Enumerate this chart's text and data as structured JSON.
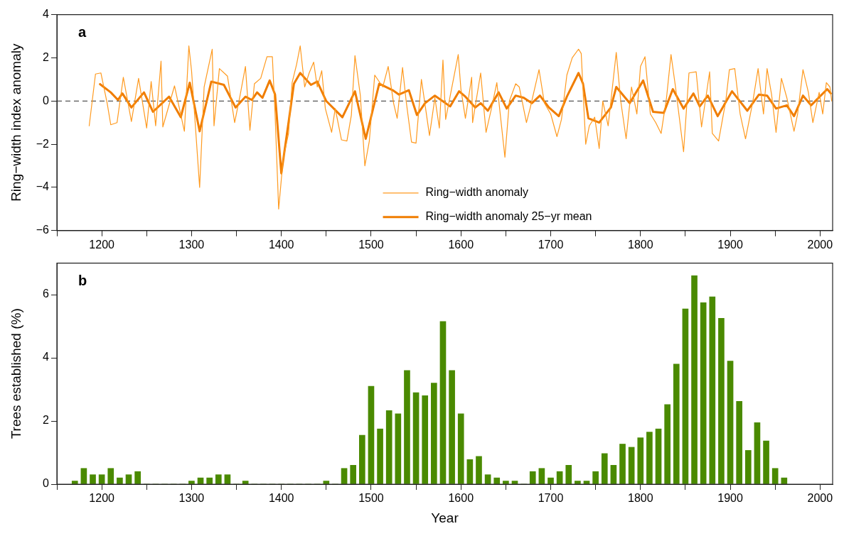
{
  "chart_data": [
    {
      "type": "line",
      "ylabel": "Ring−width index anomaly",
      "annotations": [
        "a"
      ],
      "legend": "bottom",
      "marker": "none",
      "grid": false,
      "xlim": [
        1150,
        2014
      ],
      "xticks": [
        {
          "value": 1150,
          "label": null
        },
        1200,
        {
          "value": 1250,
          "label": null
        },
        1300,
        {
          "value": 1350,
          "label": null
        },
        1400,
        {
          "value": 1450,
          "label": null
        },
        1500,
        {
          "value": 1550,
          "label": null
        },
        1600,
        {
          "value": 1650,
          "label": null
        },
        1700,
        {
          "value": 1750,
          "label": null
        },
        1800,
        {
          "value": 1850,
          "label": null
        },
        1900,
        {
          "value": 1950,
          "label": null
        },
        2000
      ],
      "ylim": [
        -6,
        4
      ],
      "yticks": [
        {
          "value": -6,
          "label": "−6"
        },
        {
          "value": -4,
          "label": "−4"
        },
        {
          "value": -2,
          "label": "−2"
        },
        0,
        2,
        4
      ],
      "ref_lines": [
        {
          "axis": "y",
          "value": 0,
          "color": "#555555",
          "line_style": "dashed"
        }
      ],
      "series": [
        {
          "name": "Ring−width anomaly",
          "color": "#ff9a1f",
          "x": [
            1186,
            1193,
            1199,
            1206,
            1210,
            1217,
            1224,
            1233,
            1241,
            1250,
            1255,
            1260,
            1266,
            1268,
            1281,
            1292,
            1297,
            1300,
            1309,
            1314,
            1323,
            1325,
            1331,
            1340,
            1348,
            1354,
            1360,
            1365,
            1370,
            1377,
            1384,
            1390,
            1393,
            1397,
            1402,
            1408,
            1412,
            1417,
            1421,
            1426,
            1431,
            1436,
            1440,
            1445,
            1449,
            1456,
            1460,
            1467,
            1473,
            1478,
            1482,
            1488,
            1493,
            1498,
            1504,
            1513,
            1519,
            1525,
            1529,
            1535,
            1539,
            1545,
            1550,
            1556,
            1565,
            1571,
            1576,
            1580,
            1583,
            1597,
            1600,
            1605,
            1612,
            1613,
            1622,
            1628,
            1634,
            1640,
            1649,
            1654,
            1661,
            1665,
            1673,
            1677,
            1687,
            1693,
            1700,
            1707,
            1712,
            1718,
            1724,
            1731,
            1734,
            1739,
            1743,
            1749,
            1754,
            1758,
            1764,
            1773,
            1778,
            1784,
            1790,
            1796,
            1800,
            1805,
            1811,
            1817,
            1823,
            1829,
            1834,
            1839,
            1848,
            1854,
            1862,
            1868,
            1877,
            1880,
            1887,
            1895,
            1899,
            1905,
            1911,
            1917,
            1925,
            1931,
            1937,
            1941,
            1946,
            1951,
            1957,
            1963,
            1971,
            1975,
            1981,
            1987,
            1992,
            1999,
            2003,
            2007,
            2011,
            2013
          ],
          "values": [
            -1.15,
            1.25,
            1.3,
            -0.1,
            -1.1,
            -1.0,
            1.1,
            -0.95,
            1.05,
            -1.25,
            0.9,
            -1.15,
            1.85,
            -1.2,
            0.7,
            -1.4,
            2.55,
            1.4,
            -4.0,
            0.65,
            2.4,
            -1.15,
            1.5,
            1.15,
            -1.0,
            0.25,
            1.6,
            -1.35,
            0.8,
            1.05,
            2.05,
            2.05,
            -0.6,
            -5.0,
            -2.7,
            -1.5,
            0.85,
            1.7,
            2.55,
            0.65,
            1.3,
            1.8,
            0.65,
            1.4,
            -0.35,
            -1.45,
            -0.35,
            -1.8,
            -1.85,
            -0.65,
            2.1,
            0.25,
            -3.0,
            -1.85,
            1.2,
            0.65,
            1.6,
            -0.1,
            -0.8,
            1.55,
            0,
            -1.9,
            -1.95,
            1.0,
            -1.6,
            0.15,
            -1.25,
            1.9,
            -0.85,
            2.15,
            0.55,
            -0.8,
            1.1,
            -1.0,
            1.3,
            -1.45,
            -0.35,
            0.85,
            -2.6,
            0,
            0.8,
            0.65,
            -1.0,
            -0.35,
            1.45,
            -0.1,
            -0.6,
            -1.65,
            -0.85,
            1.2,
            2.0,
            2.4,
            2.2,
            -2.0,
            -1.15,
            -0.75,
            -2.2,
            0,
            -1.15,
            2.25,
            0,
            -1.75,
            0.65,
            -0.6,
            1.6,
            2.05,
            -0.6,
            -1.0,
            -1.5,
            0.15,
            2.15,
            0.65,
            -2.35,
            1.3,
            1.35,
            -1.2,
            1.35,
            -1.5,
            -1.85,
            0,
            1.45,
            1.5,
            -0.6,
            -1.75,
            -0.05,
            1.5,
            -0.6,
            1.5,
            0.3,
            -1.45,
            1.05,
            0.15,
            -1.4,
            -0.6,
            1.45,
            0.4,
            -1.0,
            0.4,
            -0.6,
            0.85,
            0.65,
            0
          ]
        },
        {
          "name": "Ring−width anomaly 25−yr mean",
          "color": "#f07d00",
          "x": [
            1198,
            1210,
            1218,
            1223,
            1233,
            1247,
            1257,
            1275,
            1288,
            1298,
            1309,
            1322,
            1336,
            1349,
            1360,
            1367,
            1373,
            1379,
            1387,
            1393,
            1400,
            1408,
            1414,
            1421,
            1433,
            1440,
            1450,
            1468,
            1482,
            1494,
            1509,
            1524,
            1531,
            1542,
            1551,
            1560,
            1571,
            1588,
            1598,
            1605,
            1616,
            1622,
            1630,
            1642,
            1651,
            1661,
            1670,
            1679,
            1688,
            1698,
            1709,
            1718,
            1731,
            1736,
            1742,
            1754,
            1767,
            1773,
            1788,
            1803,
            1814,
            1826,
            1836,
            1848,
            1859,
            1866,
            1875,
            1886,
            1902,
            1919,
            1932,
            1941,
            1951,
            1963,
            1971,
            1981,
            1990,
            2008,
            2012
          ],
          "values": [
            0.78,
            0.4,
            0.05,
            0.35,
            -0.3,
            0.4,
            -0.5,
            0.2,
            -0.75,
            0.85,
            -1.4,
            0.9,
            0.75,
            -0.3,
            0.2,
            0.05,
            0.4,
            0.15,
            0.95,
            0.3,
            -3.35,
            -1.0,
            0.8,
            1.3,
            0.75,
            0.9,
            0,
            -0.75,
            0.45,
            -1.75,
            0.8,
            0.5,
            0.3,
            0.5,
            -0.65,
            -0.1,
            0.25,
            -0.25,
            0.45,
            0.2,
            -0.3,
            -0.1,
            -0.45,
            0.4,
            -0.35,
            0.25,
            0.15,
            -0.1,
            0.25,
            -0.3,
            -0.7,
            0.2,
            1.3,
            0.8,
            -0.8,
            -1.0,
            -0.3,
            0.65,
            -0.1,
            0.95,
            -0.5,
            -0.55,
            0.55,
            -0.35,
            0.35,
            -0.25,
            0.25,
            -0.7,
            0.45,
            -0.45,
            0.3,
            0.25,
            -0.35,
            -0.2,
            -0.7,
            0.25,
            -0.2,
            0.55,
            0.35
          ]
        }
      ]
    },
    {
      "type": "bar",
      "xlabel": "Year",
      "ylabel": "Trees established (%)",
      "annotations": [
        "b"
      ],
      "color": "#4a8a00",
      "grid": false,
      "xlim": [
        1150,
        2014
      ],
      "xticks": [
        {
          "value": 1150,
          "label": null
        },
        1200,
        {
          "value": 1250,
          "label": null
        },
        1300,
        {
          "value": 1350,
          "label": null
        },
        1400,
        {
          "value": 1450,
          "label": null
        },
        1500,
        {
          "value": 1550,
          "label": null
        },
        1600,
        {
          "value": 1650,
          "label": null
        },
        1700,
        {
          "value": 1750,
          "label": null
        },
        1800,
        {
          "value": 1850,
          "label": null
        },
        1900,
        {
          "value": 1950,
          "label": null
        },
        2000
      ],
      "ylim": [
        0,
        7
      ],
      "yticks": [
        0,
        2,
        4,
        6
      ],
      "x": [
        1170,
        1180,
        1190,
        1200,
        1210,
        1220,
        1230,
        1240,
        1250,
        1260,
        1270,
        1280,
        1290,
        1300,
        1310,
        1320,
        1330,
        1340,
        1350,
        1360,
        1370,
        1380,
        1390,
        1400,
        1410,
        1420,
        1430,
        1440,
        1450,
        1460,
        1470,
        1480,
        1490,
        1500,
        1510,
        1520,
        1530,
        1540,
        1550,
        1560,
        1570,
        1580,
        1590,
        1600,
        1610,
        1620,
        1630,
        1640,
        1650,
        1660,
        1670,
        1680,
        1690,
        1700,
        1710,
        1720,
        1730,
        1740,
        1750,
        1760,
        1770,
        1780,
        1790,
        1800,
        1810,
        1820,
        1830,
        1840,
        1850,
        1860,
        1870,
        1880,
        1890,
        1900,
        1910,
        1920,
        1930,
        1940,
        1950,
        1960
      ],
      "values": [
        0.1,
        0.5,
        0.3,
        0.3,
        0.5,
        0.2,
        0.3,
        0.4,
        0,
        0,
        0,
        0,
        0,
        0.1,
        0.2,
        0.2,
        0.3,
        0.3,
        0,
        0.1,
        0,
        0,
        0,
        0,
        0,
        0,
        0,
        0,
        0.1,
        0,
        0.5,
        0.6,
        1.55,
        3.1,
        1.75,
        2.33,
        2.23,
        3.6,
        2.9,
        2.8,
        3.2,
        5.15,
        3.6,
        2.23,
        0.78,
        0.88,
        0.3,
        0.2,
        0.1,
        0.1,
        0,
        0.4,
        0.5,
        0.2,
        0.4,
        0.6,
        0.1,
        0.1,
        0.4,
        0.97,
        0.6,
        1.27,
        1.17,
        1.47,
        1.65,
        1.75,
        2.52,
        3.8,
        5.55,
        6.6,
        5.75,
        5.93,
        5.25,
        3.9,
        2.62,
        1.07,
        1.95,
        1.37,
        0.5,
        0.2
      ]
    }
  ]
}
